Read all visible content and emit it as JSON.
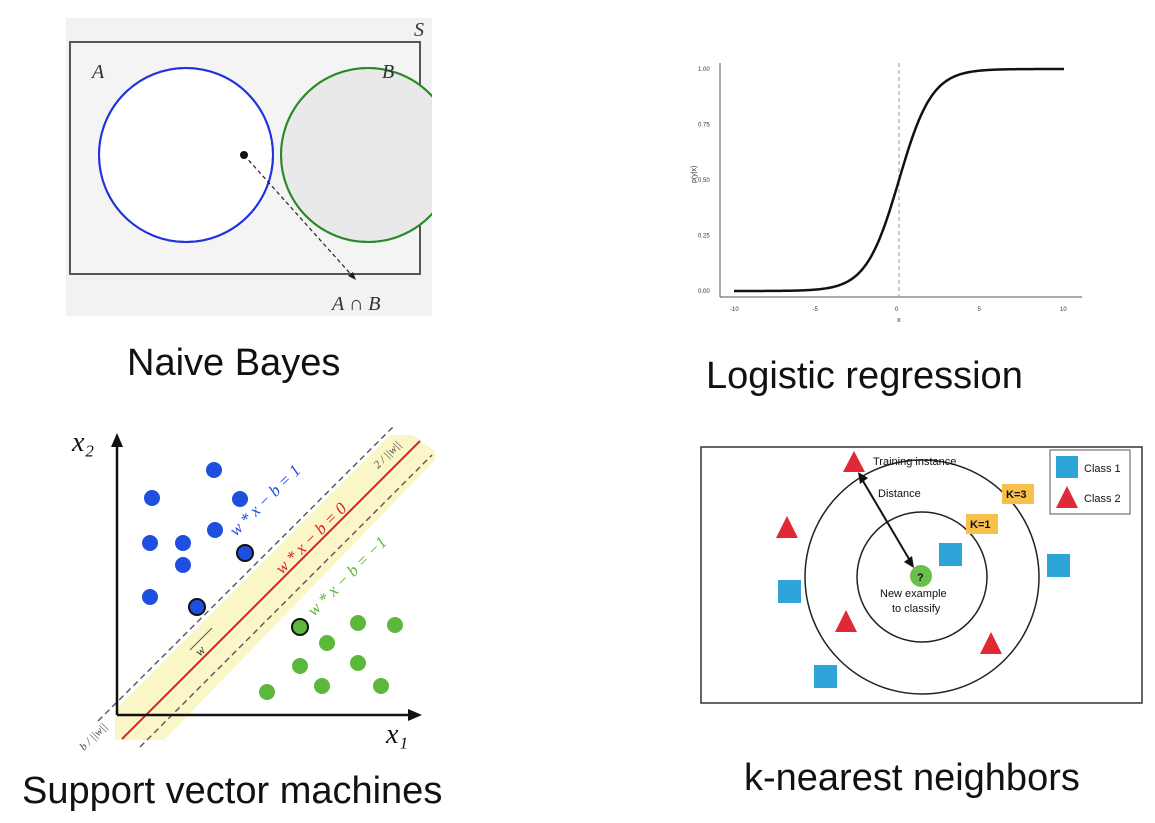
{
  "naive_bayes": {
    "caption": "Naive Bayes",
    "universe_label": "S",
    "set_a_label": "A",
    "set_b_label": "B",
    "intersection_label": "A ∩ B"
  },
  "logistic_regression": {
    "caption": "Logistic regression",
    "y_axis_label": "p(y|x)",
    "x_axis_label": "x",
    "y_ticks": [
      "1.00",
      "0.75",
      "0.50",
      "0.25",
      "0.00"
    ],
    "x_ticks": [
      "-10",
      "-5",
      "0",
      "5",
      "10"
    ]
  },
  "svm": {
    "caption": "Support vector machines",
    "x_axis_label": "x₁",
    "y_axis_label": "x₂",
    "upper_margin_eq": "w * x − b = 1",
    "decision_eq": "w * x − b = 0",
    "lower_margin_eq": "w * x − b = −1",
    "margin_width_label": "2 / ||w||",
    "offset_label": "b / ||w||",
    "normal_label": "w",
    "colors": {
      "class_a": "#1f4fe0",
      "class_b": "#5cb83a",
      "decision": "#e02020",
      "margin": "#fbf6c8"
    }
  },
  "knn": {
    "caption": "k-nearest neighbors",
    "training_instance_label": "Training instance",
    "distance_label": "Distance",
    "new_example_label": "New example",
    "to_classify_label": "to classify",
    "query_symbol": "?",
    "k1_label": "K=1",
    "k3_label": "K=3",
    "legend": [
      {
        "label": "Class 1",
        "shape": "square-icon",
        "color": "#2fa4db"
      },
      {
        "label": "Class 2",
        "shape": "triangle-icon",
        "color": "#e02836"
      }
    ]
  }
}
